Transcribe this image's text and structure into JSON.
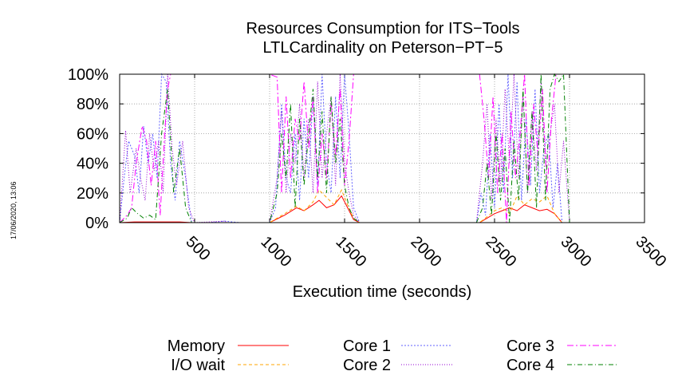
{
  "chart_data": {
    "type": "line",
    "title": "Resources Consumption for ITS−Tools",
    "subtitle": "LTLCardinality on Peterson−PT−5",
    "xlabel": "Execution time (seconds)",
    "ylabel": "",
    "xlim": [
      0,
      3500
    ],
    "ylim": [
      0,
      100
    ],
    "xticks": [
      500,
      1000,
      1500,
      2000,
      2500,
      3000,
      3500
    ],
    "yticks": [
      0,
      20,
      40,
      60,
      80,
      100
    ],
    "xtick_labels": [
      "500",
      "1000",
      "1500",
      "2000",
      "2500",
      "3000",
      "3500"
    ],
    "ytick_labels": [
      "0%",
      "20%",
      "40%",
      "60%",
      "80%",
      "100%"
    ],
    "grid": true,
    "legend_position": "bottom",
    "series": [
      {
        "name": "Memory",
        "color": "#ff0000",
        "dash": "",
        "x": [
          0,
          100,
          200,
          300,
          400,
          480,
          1000,
          1100,
          1180,
          1230,
          1290,
          1330,
          1380,
          1430,
          1480,
          1520,
          1560,
          1600,
          2000,
          2400,
          2450,
          2500,
          2550,
          2600,
          2650,
          2700,
          2750,
          2800,
          2850,
          2900,
          2950,
          3500
        ],
        "y": [
          0,
          0.5,
          0.5,
          0.5,
          0.5,
          0,
          0,
          5,
          10,
          8,
          12,
          15,
          10,
          12,
          18,
          10,
          2,
          0,
          0,
          0,
          3,
          6,
          8,
          10,
          8,
          12,
          10,
          8,
          9,
          6,
          0,
          0
        ]
      },
      {
        "name": "I/O wait",
        "color": "#ffa500",
        "dash": "4,3",
        "x": [
          0,
          480,
          1000,
          1100,
          1180,
          1230,
          1290,
          1330,
          1380,
          1430,
          1480,
          1520,
          1560,
          1600,
          2400,
          2450,
          2500,
          2550,
          2600,
          2650,
          2700,
          2750,
          2800,
          2850,
          2900,
          2950,
          3500
        ],
        "y": [
          0,
          0,
          0,
          6,
          11,
          8,
          14,
          22,
          17,
          12,
          22,
          12,
          3,
          0,
          0,
          4,
          8,
          10,
          6,
          18,
          12,
          16,
          14,
          18,
          6,
          0,
          0
        ]
      },
      {
        "name": "Core 1",
        "color": "#6060ff",
        "dash": "2,2",
        "x": [
          0,
          30,
          60,
          100,
          130,
          160,
          190,
          220,
          250,
          280,
          310,
          340,
          370,
          400,
          440,
          480,
          600,
          700,
          800,
          1000,
          1040,
          1080,
          1110,
          1140,
          1170,
          1200,
          1230,
          1260,
          1290,
          1320,
          1350,
          1380,
          1410,
          1440,
          1470,
          1500,
          1530,
          1560,
          1600,
          2000,
          2380,
          2410,
          2440,
          2470,
          2500,
          2530,
          2560,
          2590,
          2620,
          2650,
          2680,
          2710,
          2740,
          2770,
          2800,
          2830,
          2860,
          2890,
          2920,
          2950,
          3000,
          3500
        ],
        "y": [
          0,
          30,
          55,
          45,
          20,
          65,
          40,
          60,
          30,
          100,
          95,
          40,
          15,
          55,
          30,
          0,
          0,
          1,
          0,
          0,
          10,
          80,
          30,
          20,
          60,
          15,
          70,
          30,
          85,
          25,
          100,
          40,
          20,
          85,
          30,
          100,
          60,
          10,
          0,
          0,
          0,
          20,
          5,
          60,
          10,
          80,
          20,
          100,
          30,
          95,
          15,
          70,
          25,
          90,
          20,
          50,
          60,
          10,
          40,
          0,
          0,
          0
        ]
      },
      {
        "name": "Core 2",
        "color": "#9400d3",
        "dash": "1,2",
        "x": [
          0,
          40,
          70,
          110,
          140,
          170,
          200,
          230,
          260,
          290,
          320,
          350,
          380,
          420,
          460,
          500,
          700,
          720,
          1000,
          1050,
          1080,
          1110,
          1140,
          1170,
          1200,
          1230,
          1260,
          1290,
          1320,
          1350,
          1380,
          1410,
          1440,
          1470,
          1500,
          1530,
          1560,
          1600,
          2000,
          2380,
          2420,
          2450,
          2480,
          2510,
          2540,
          2570,
          2600,
          2630,
          2660,
          2690,
          2720,
          2750,
          2780,
          2810,
          2840,
          2870,
          2900,
          2930,
          2960,
          3000,
          3500
        ],
        "y": [
          0,
          62,
          20,
          50,
          30,
          15,
          60,
          35,
          55,
          20,
          100,
          50,
          25,
          55,
          10,
          0,
          1,
          0,
          0,
          30,
          75,
          20,
          60,
          40,
          80,
          30,
          70,
          20,
          95,
          30,
          60,
          85,
          25,
          100,
          40,
          20,
          5,
          0,
          0,
          0,
          40,
          80,
          15,
          70,
          25,
          90,
          40,
          100,
          30,
          85,
          20,
          75,
          35,
          95,
          40,
          60,
          80,
          20,
          55,
          0,
          0
        ]
      },
      {
        "name": "Core 3",
        "color": "#ff00ff",
        "dash": "8,3,2,3",
        "x": [
          0,
          50,
          80,
          110,
          150,
          180,
          210,
          240,
          270,
          300,
          320,
          340,
          1000,
          1050,
          1080,
          1110,
          1140,
          1170,
          1200,
          1230,
          1260,
          1290,
          1320,
          1350,
          1380,
          1410,
          1440,
          1470,
          1500,
          1530,
          1560,
          1600,
          2000,
          2360,
          2400,
          2430,
          2460,
          2490,
          2520,
          2550,
          2580,
          2610,
          2640,
          2670,
          2700,
          2730,
          2760,
          2790,
          2820,
          2850,
          2880,
          2910,
          2940,
          3000,
          3500
        ],
        "y": [
          0,
          5,
          10,
          40,
          65,
          55,
          25,
          55,
          5,
          60,
          90,
          100,
          100,
          98,
          20,
          85,
          30,
          70,
          55,
          95,
          50,
          85,
          20,
          60,
          30,
          80,
          45,
          90,
          25,
          55,
          100,
          100,
          100,
          100,
          100,
          70,
          30,
          85,
          20,
          60,
          0,
          75,
          30,
          60,
          100,
          25,
          80,
          45,
          90,
          20,
          70,
          100,
          100,
          100,
          100
        ]
      },
      {
        "name": "Core 4",
        "color": "#008000",
        "dash": "6,3,1,3",
        "x": [
          0,
          50,
          80,
          120,
          160,
          200,
          240,
          280,
          320,
          360,
          400,
          440,
          480,
          1000,
          1050,
          1080,
          1110,
          1140,
          1170,
          1200,
          1230,
          1260,
          1290,
          1320,
          1350,
          1380,
          1410,
          1440,
          1470,
          1500,
          1530,
          1560,
          1600,
          2000,
          2380,
          2420,
          2450,
          2480,
          2510,
          2540,
          2570,
          2600,
          2630,
          2660,
          2690,
          2720,
          2750,
          2780,
          2810,
          2840,
          2870,
          2900,
          2930,
          2960,
          3000,
          3500
        ],
        "y": [
          0,
          3,
          10,
          6,
          3,
          5,
          2,
          60,
          90,
          20,
          50,
          10,
          0,
          0,
          20,
          60,
          30,
          80,
          10,
          70,
          25,
          60,
          90,
          30,
          75,
          20,
          85,
          40,
          70,
          25,
          10,
          3,
          0,
          0,
          0,
          10,
          40,
          5,
          60,
          15,
          50,
          0,
          55,
          15,
          90,
          20,
          75,
          10,
          100,
          15,
          90,
          100,
          95,
          100,
          0,
          0
        ]
      }
    ]
  },
  "timestamp": "17/06/2020, 13:06"
}
